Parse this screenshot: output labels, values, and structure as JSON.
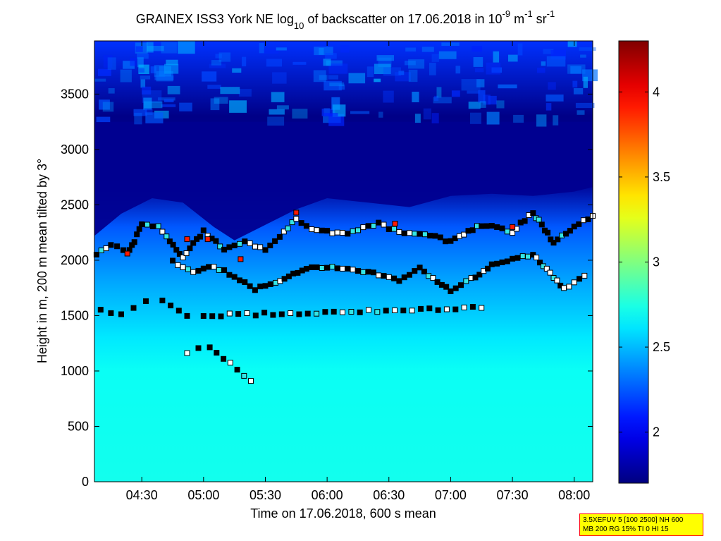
{
  "chart_data": {
    "type": "heatmap",
    "title": {
      "prefix": "GRAINEX ISS3 York NE log",
      "log_base": "10",
      "middle": " of backscatter on 17.06.2018 in 10",
      "exp1": "-9",
      "unit1": " m",
      "exp2": "-1",
      "unit2": " sr",
      "exp3": "-1"
    },
    "xlabel": "Time on 17.06.2018, 600 s mean",
    "ylabel": "Height in m, 200 m mean tilted by 3°",
    "xlim": [
      "04:07",
      "08:09"
    ],
    "ylim": [
      0,
      3980
    ],
    "x_ticks": [
      "04:30",
      "05:00",
      "05:30",
      "06:00",
      "06:30",
      "07:00",
      "07:30",
      "08:00"
    ],
    "y_ticks": [
      "0",
      "500",
      "1000",
      "1500",
      "2000",
      "2500",
      "3000",
      "3500"
    ],
    "colorbar": {
      "colormap": "jet",
      "range": [
        1.7,
        4.3
      ],
      "ticks": [
        "2",
        "2.5",
        "3",
        "3.5",
        "4"
      ]
    },
    "background_levels": [
      {
        "height": 0,
        "value": 2.72
      },
      {
        "height": 1000,
        "value": 2.7
      },
      {
        "height": 1300,
        "value": 2.62
      },
      {
        "height": 1800,
        "value": 2.45
      },
      {
        "height": 2300,
        "value": 2.25
      },
      {
        "height": 2700,
        "value": 1.75
      },
      {
        "height": 3300,
        "value": 1.72
      },
      {
        "height": 3980,
        "value": 2.15
      }
    ],
    "top_layer_height": [
      [
        "04:07",
        2220
      ],
      [
        "04:20",
        2420
      ],
      [
        "04:35",
        2560
      ],
      [
        "04:50",
        2520
      ],
      [
        "05:05",
        2300
      ],
      [
        "05:15",
        2180
      ],
      [
        "05:30",
        2320
      ],
      [
        "05:45",
        2460
      ],
      [
        "06:00",
        2560
      ],
      [
        "06:20",
        2520
      ],
      [
        "06:40",
        2480
      ],
      [
        "07:00",
        2580
      ],
      [
        "07:20",
        2600
      ],
      [
        "07:40",
        2580
      ],
      [
        "08:00",
        2620
      ],
      [
        "08:09",
        2660
      ]
    ],
    "cloud_base_layers": [
      {
        "points": [
          [
            "04:08",
            2050
          ],
          [
            "04:15",
            2140
          ],
          [
            "04:24",
            2080
          ],
          [
            "04:30",
            2320
          ],
          [
            "04:38",
            2300
          ],
          [
            "04:42",
            2220
          ],
          [
            "04:50",
            2030
          ],
          [
            "05:00",
            2260
          ],
          [
            "05:10",
            2100
          ],
          [
            "05:20",
            2170
          ],
          [
            "05:30",
            2100
          ],
          [
            "05:37",
            2220
          ],
          [
            "05:45",
            2370
          ],
          [
            "05:55",
            2260
          ],
          [
            "06:10",
            2250
          ],
          [
            "06:25",
            2330
          ],
          [
            "06:35",
            2250
          ],
          [
            "06:50",
            2220
          ],
          [
            "07:00",
            2170
          ],
          [
            "07:15",
            2320
          ],
          [
            "07:30",
            2260
          ],
          [
            "07:40",
            2430
          ],
          [
            "07:50",
            2160
          ],
          [
            "08:00",
            2300
          ],
          [
            "08:09",
            2400
          ]
        ]
      },
      {
        "points": [
          [
            "04:45",
            1990
          ],
          [
            "04:55",
            1890
          ],
          [
            "05:05",
            1940
          ],
          [
            "05:15",
            1860
          ],
          [
            "05:25",
            1740
          ],
          [
            "05:35",
            1790
          ],
          [
            "05:50",
            1930
          ],
          [
            "06:00",
            1940
          ],
          [
            "06:30",
            1860
          ],
          [
            "06:35",
            1810
          ],
          [
            "06:45",
            1930
          ],
          [
            "07:00",
            1720
          ],
          [
            "07:10",
            1830
          ],
          [
            "07:20",
            1960
          ],
          [
            "07:40",
            2050
          ],
          [
            "07:55",
            1740
          ],
          [
            "08:05",
            1860
          ]
        ]
      },
      {
        "points": [
          [
            "04:10",
            1550
          ],
          [
            "04:20",
            1520
          ],
          [
            "04:26",
            1560
          ],
          [
            "04:32",
            1630
          ],
          [
            "04:40",
            1640
          ],
          [
            "04:52",
            1490
          ],
          [
            "05:00",
            1500
          ],
          [
            "07:15",
            1570
          ]
        ]
      },
      {
        "points": [
          [
            "04:52",
            1170
          ],
          [
            "05:03",
            1220
          ],
          [
            "05:23",
            910
          ]
        ]
      }
    ],
    "red_markers": [
      [
        "04:23",
        2060
      ],
      [
        "04:52",
        2190
      ],
      [
        "05:02",
        2190
      ],
      [
        "05:18",
        2010
      ],
      [
        "05:45",
        2430
      ],
      [
        "06:33",
        2330
      ],
      [
        "07:30",
        2300
      ]
    ]
  },
  "info_box": {
    "line1": "3.5XEFUV 5 [100 2500] NH 600",
    "line2": "MB 200 RG 15% TI 0 HI 15"
  }
}
